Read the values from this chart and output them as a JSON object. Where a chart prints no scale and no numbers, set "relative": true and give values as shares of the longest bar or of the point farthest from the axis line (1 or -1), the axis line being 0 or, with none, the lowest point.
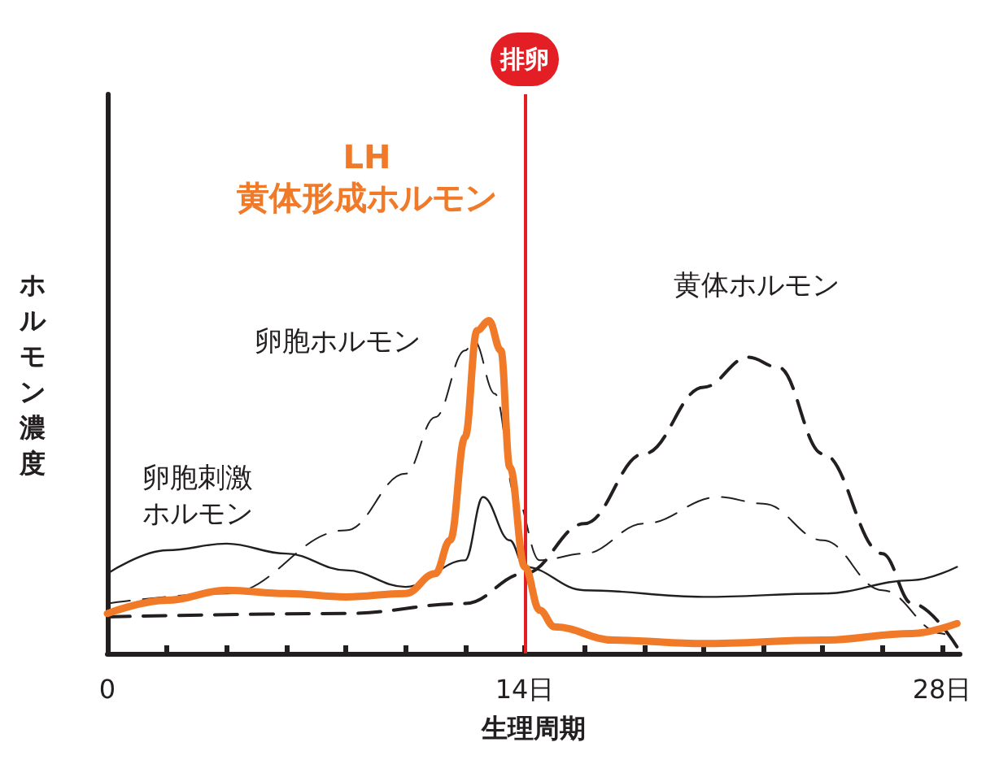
{
  "chart_data": {
    "type": "line",
    "relative": true,
    "xlabel": "生理周期",
    "ylabel": "ホルモン濃度",
    "xlim": [
      0,
      28.6
    ],
    "xticks": [
      {
        "value": 0,
        "label": "0"
      },
      {
        "value": 2,
        "label": null
      },
      {
        "value": 4,
        "label": null
      },
      {
        "value": 6,
        "label": null
      },
      {
        "value": 8,
        "label": null
      },
      {
        "value": 10,
        "label": null
      },
      {
        "value": 12,
        "label": null
      },
      {
        "value": 14,
        "label": "14日"
      },
      {
        "value": 16,
        "label": null
      },
      {
        "value": 18,
        "label": null
      },
      {
        "value": 20,
        "label": null
      },
      {
        "value": 22,
        "label": null
      },
      {
        "value": 24,
        "label": null
      },
      {
        "value": 26,
        "label": null
      },
      {
        "value": 28,
        "label": "28日"
      }
    ],
    "grid": false,
    "legend": false,
    "marker": "none",
    "ref_lines": [
      {
        "axis": "x",
        "value": 14,
        "label": "排卵",
        "color": "#e31e24"
      }
    ],
    "series": [
      {
        "name": "卵胞刺激ホルモン",
        "color": "#231f20",
        "line_style": "solid",
        "x": [
          0,
          2,
          4,
          6,
          8,
          10,
          12,
          12.6,
          13.5,
          14,
          16,
          20,
          24,
          27,
          28.5
        ],
        "values": [
          0.24,
          0.31,
          0.33,
          0.3,
          0.25,
          0.2,
          0.28,
          0.47,
          0.34,
          0.26,
          0.19,
          0.17,
          0.18,
          0.22,
          0.26
        ]
      },
      {
        "name": "卵胞ホルモン",
        "color": "#231f20",
        "line_style": "dashed",
        "x": [
          0,
          4,
          8,
          10,
          11,
          12,
          12.3,
          13,
          13.7,
          14.5,
          16,
          18,
          20.5,
          22,
          24,
          26,
          28,
          28.5
        ],
        "values": [
          0.15,
          0.18,
          0.37,
          0.54,
          0.71,
          0.91,
          0.94,
          0.78,
          0.47,
          0.28,
          0.3,
          0.39,
          0.47,
          0.45,
          0.34,
          0.19,
          0.06,
          0.02
        ]
      },
      {
        "name": "黄体ホルモン",
        "color": "#231f20",
        "line_style": "dashed",
        "x": [
          0,
          8,
          12,
          14,
          16,
          18,
          20,
          21.5,
          22.5,
          24,
          26,
          27,
          28.5
        ],
        "values": [
          0.11,
          0.12,
          0.15,
          0.24,
          0.39,
          0.6,
          0.8,
          0.89,
          0.86,
          0.6,
          0.3,
          0.15,
          0.02
        ]
      },
      {
        "name": "LH\n黄体形成ホルモン",
        "color": "#f07a28",
        "line_style": "solid",
        "x": [
          0,
          2,
          4,
          6,
          8,
          10,
          11,
          11.5,
          12,
          12.4,
          12.8,
          13.2,
          13.5,
          14,
          14.5,
          15,
          17,
          20,
          24,
          27,
          28.5
        ],
        "values": [
          0.12,
          0.16,
          0.19,
          0.18,
          0.17,
          0.18,
          0.24,
          0.34,
          0.65,
          0.97,
          1,
          0.91,
          0.56,
          0.26,
          0.13,
          0.08,
          0.04,
          0.03,
          0.04,
          0.06,
          0.09
        ]
      }
    ]
  }
}
